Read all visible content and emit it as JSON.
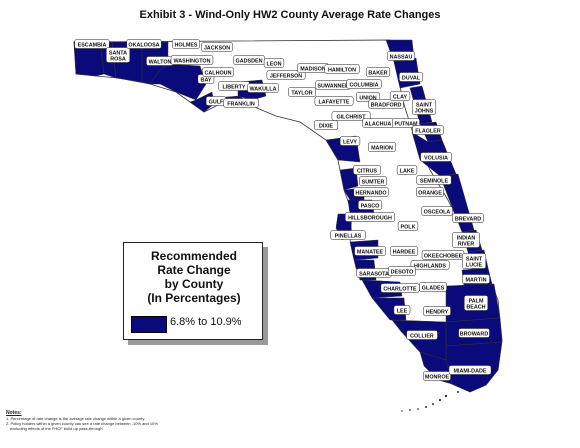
{
  "title": "Exhibit 3 - Wind-Only HW2 County Average Rate Changes",
  "legend": {
    "title_lines": [
      "Recommended",
      "Rate Change",
      "by County",
      "(In Percentages)"
    ],
    "entries": [
      {
        "label": "6.8% to 10.9%",
        "color": "#0a0a7a"
      }
    ]
  },
  "notes": {
    "heading": "Notes:",
    "lines": [
      "1. Percentage of rate change is the average rate change within a given county.",
      "2. Policy holders within a given county can see a rate change between -10% and 10%",
      "excluding effects of the FHCF build-up pass-through."
    ]
  },
  "colors": {
    "shaded": "#0a0a7a",
    "unshaded": "#ffffff",
    "outline": "#333333"
  },
  "counties": [
    {
      "name": "ESCAMBIA",
      "shaded": true
    },
    {
      "name": "SANTA ROSA",
      "shaded": true
    },
    {
      "name": "OKALOOSA",
      "shaded": true
    },
    {
      "name": "WALTON",
      "shaded": true
    },
    {
      "name": "HOLMES",
      "shaded": false
    },
    {
      "name": "WASHINGTON",
      "shaded": false
    },
    {
      "name": "JACKSON",
      "shaded": false
    },
    {
      "name": "BAY",
      "shaded": true
    },
    {
      "name": "CALHOUN",
      "shaded": false
    },
    {
      "name": "GULF",
      "shaded": true
    },
    {
      "name": "LIBERTY",
      "shaded": false
    },
    {
      "name": "FRANKLIN",
      "shaded": true
    },
    {
      "name": "GADSDEN",
      "shaded": false
    },
    {
      "name": "LEON",
      "shaded": false
    },
    {
      "name": "WAKULLA",
      "shaded": true
    },
    {
      "name": "JEFFERSON",
      "shaded": false
    },
    {
      "name": "MADISON",
      "shaded": false
    },
    {
      "name": "HAMILTON",
      "shaded": false
    },
    {
      "name": "TAYLOR",
      "shaded": false
    },
    {
      "name": "SUWANNEE",
      "shaded": false
    },
    {
      "name": "COLUMBIA",
      "shaded": false
    },
    {
      "name": "BAKER",
      "shaded": false
    },
    {
      "name": "NASSAU",
      "shaded": true
    },
    {
      "name": "DUVAL",
      "shaded": true
    },
    {
      "name": "LAFAYETTE",
      "shaded": false
    },
    {
      "name": "UNION",
      "shaded": false
    },
    {
      "name": "BRADFORD",
      "shaded": false
    },
    {
      "name": "CLAY",
      "shaded": false
    },
    {
      "name": "SAINT JOHNS",
      "shaded": true
    },
    {
      "name": "DIXIE",
      "shaded": false
    },
    {
      "name": "GILCHRIST",
      "shaded": false
    },
    {
      "name": "ALACHUA",
      "shaded": false
    },
    {
      "name": "PUTNAM",
      "shaded": false
    },
    {
      "name": "FLAGLER",
      "shaded": true
    },
    {
      "name": "LEVY",
      "shaded": true
    },
    {
      "name": "MARION",
      "shaded": false
    },
    {
      "name": "VOLUSIA",
      "shaded": true
    },
    {
      "name": "CITRUS",
      "shaded": true
    },
    {
      "name": "LAKE",
      "shaded": false
    },
    {
      "name": "SEMINOLE",
      "shaded": false
    },
    {
      "name": "SUMTER",
      "shaded": false
    },
    {
      "name": "HERNANDO",
      "shaded": true
    },
    {
      "name": "ORANGE",
      "shaded": false
    },
    {
      "name": "PASCO",
      "shaded": true
    },
    {
      "name": "OSCEOLA",
      "shaded": false
    },
    {
      "name": "BREVARD",
      "shaded": true
    },
    {
      "name": "HILLSBOROUGH",
      "shaded": false
    },
    {
      "name": "POLK",
      "shaded": false
    },
    {
      "name": "PINELLAS",
      "shaded": true
    },
    {
      "name": "INDIAN RIVER",
      "shaded": true
    },
    {
      "name": "MANATEE",
      "shaded": true
    },
    {
      "name": "HARDEE",
      "shaded": false
    },
    {
      "name": "OKEECHOBEE",
      "shaded": false
    },
    {
      "name": "SAINT LUCIE",
      "shaded": true
    },
    {
      "name": "HIGHLANDS",
      "shaded": false
    },
    {
      "name": "SARASOTA",
      "shaded": true
    },
    {
      "name": "DESOTO",
      "shaded": false
    },
    {
      "name": "MARTIN",
      "shaded": true
    },
    {
      "name": "CHARLOTTE",
      "shaded": true
    },
    {
      "name": "GLADES",
      "shaded": false
    },
    {
      "name": "PALM BEACH",
      "shaded": true
    },
    {
      "name": "LEE",
      "shaded": true
    },
    {
      "name": "HENDRY",
      "shaded": false
    },
    {
      "name": "BROWARD",
      "shaded": true
    },
    {
      "name": "COLLIER",
      "shaded": true
    },
    {
      "name": "MONROE",
      "shaded": true
    },
    {
      "name": "MIAMI-DADE",
      "shaded": true
    }
  ]
}
